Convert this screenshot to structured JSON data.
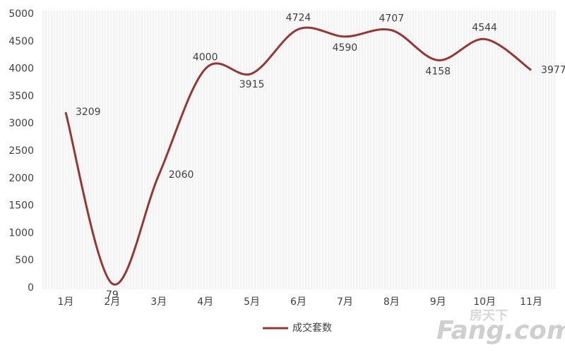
{
  "chart_data": {
    "type": "line",
    "categories": [
      "1月",
      "2月",
      "3月",
      "4月",
      "5月",
      "6月",
      "7月",
      "8月",
      "9月",
      "10月",
      "11月"
    ],
    "series": [
      {
        "name": "成交套数",
        "color": "#953735",
        "values": [
          3209,
          79,
          2060,
          4000,
          3915,
          4724,
          4590,
          4707,
          4158,
          4544,
          3977
        ]
      }
    ],
    "ylim": [
      0,
      5000
    ],
    "yticks": [
      0,
      500,
      1000,
      1500,
      2000,
      2500,
      3000,
      3500,
      4000,
      4500,
      5000
    ],
    "grid": false,
    "legend": "bottom",
    "watermark": {
      "brand": "房天下",
      "site": "Fang.com"
    }
  }
}
